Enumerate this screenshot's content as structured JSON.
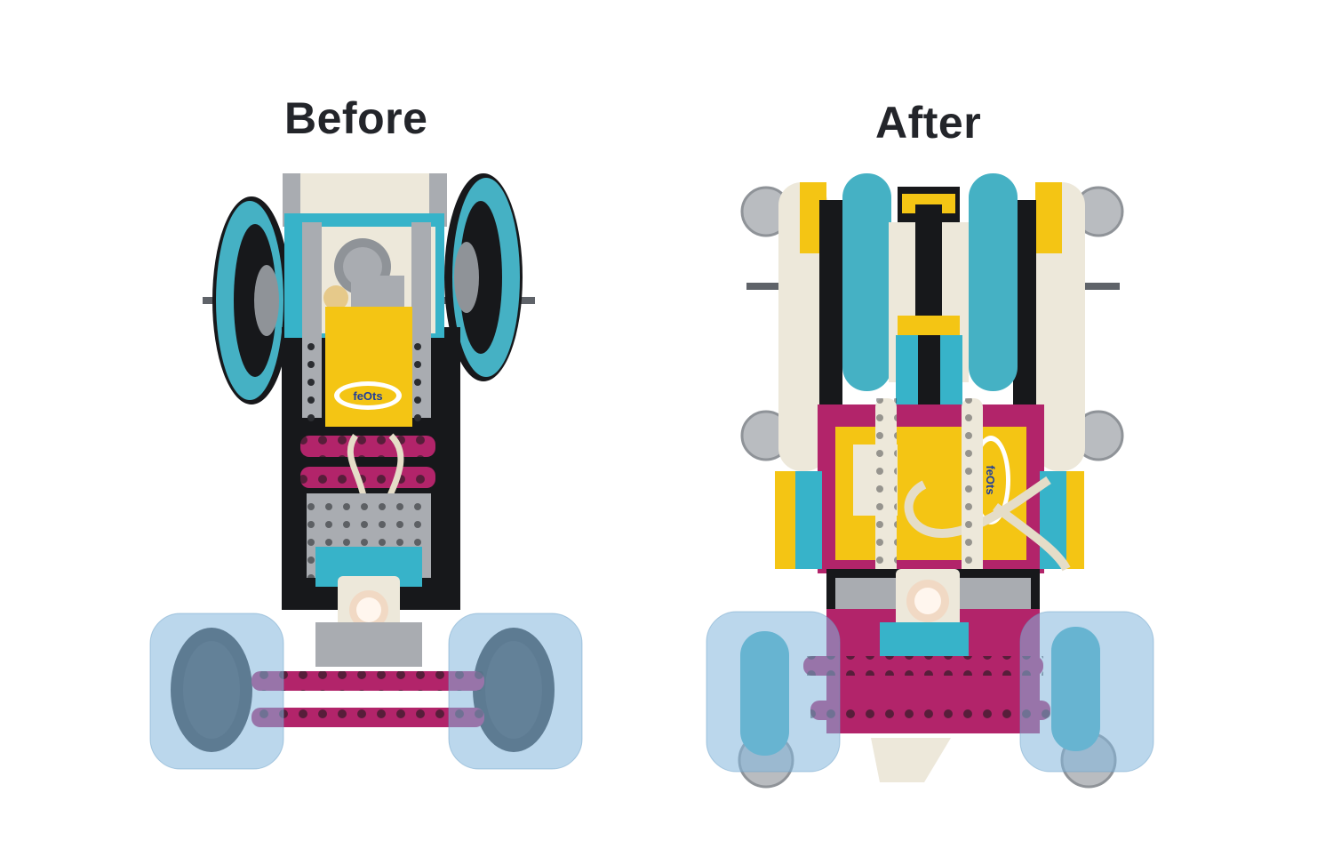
{
  "labels": {
    "before": "Before",
    "after": "After"
  },
  "palette": {
    "lego_black": "#17181b",
    "lego_grey": "#a9acb1",
    "lego_dark_grey": "#5f6369",
    "lego_white": "#ede8da",
    "lego_azure": "#37b3c9",
    "lego_teal_tire": "#45b1c4",
    "lego_magenta": "#b2246a",
    "lego_yellow": "#f4c514",
    "highlight_blue": "#84b6dc",
    "heading_text": "#23252a"
  },
  "icons": {
    "hub_logo": "hub-logo-icon",
    "light_sensor": "light-sensor-icon"
  },
  "photos": {
    "before_logo_text": "feOts",
    "after_logo_text": "feOts"
  }
}
